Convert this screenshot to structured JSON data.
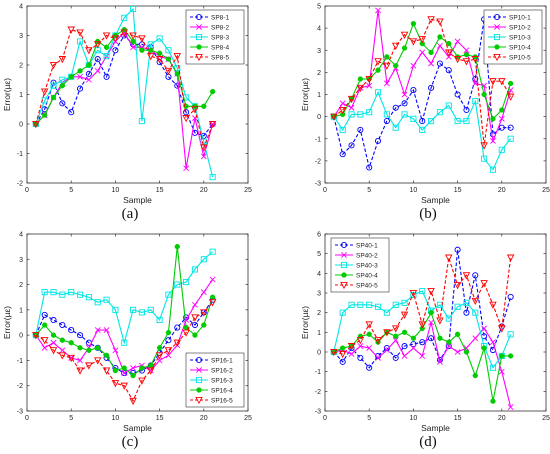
{
  "figure": {
    "panel_labels": [
      "(a)",
      "(b)",
      "(c)",
      "(d)"
    ]
  },
  "chart_data": [
    {
      "panel": "(a)",
      "type": "line",
      "xlabel": "Sample",
      "ylabel": "Error(µε)",
      "xlim": [
        0,
        25
      ],
      "ylim": [
        -2,
        4
      ],
      "xticks": [
        0,
        5,
        10,
        15,
        20,
        25
      ],
      "yticks": [
        -2,
        -1,
        0,
        1,
        2,
        3,
        4
      ],
      "legend_position": "top-right",
      "series": [
        {
          "name": "SP8-1",
          "color": "#0000ff",
          "marker": "o",
          "dash": "dash",
          "x": [
            1,
            2,
            3,
            4,
            5,
            6,
            7,
            8,
            9,
            10,
            11,
            12,
            13,
            14,
            15,
            16,
            17,
            18,
            19,
            20,
            21
          ],
          "y": [
            0,
            0.5,
            1.4,
            0.7,
            0.4,
            1.2,
            1.7,
            2.2,
            1.6,
            2.5,
            3.0,
            2.7,
            2.7,
            2.6,
            2.1,
            1.6,
            1.3,
            0.4,
            -0.3,
            -0.4,
            0
          ]
        },
        {
          "name": "SP8-2",
          "color": "#ff00ff",
          "marker": "x",
          "dash": "solid",
          "x": [
            1,
            2,
            3,
            4,
            5,
            6,
            7,
            8,
            9,
            10,
            11,
            12,
            13,
            14,
            15,
            16,
            17,
            18,
            19,
            20,
            21
          ],
          "y": [
            0,
            0.3,
            0.9,
            1.4,
            1.6,
            1.6,
            1.5,
            1.8,
            2.3,
            2.8,
            3.1,
            2.6,
            2.6,
            2.5,
            2.3,
            2.2,
            1.7,
            -1.5,
            0.2,
            -1.1,
            0
          ]
        },
        {
          "name": "SP8-3",
          "color": "#00e5e5",
          "marker": "s",
          "dash": "solid",
          "x": [
            1,
            2,
            3,
            4,
            5,
            6,
            7,
            8,
            9,
            10,
            11,
            12,
            13,
            14,
            15,
            16,
            17,
            18,
            19,
            20,
            21
          ],
          "y": [
            0,
            0.8,
            1.3,
            1.5,
            1.6,
            2.8,
            2.0,
            2.5,
            2.3,
            3.0,
            3.6,
            3.9,
            0.1,
            2.7,
            2.9,
            2.5,
            1.9,
            0.9,
            0.6,
            -0.6,
            -1.8
          ]
        },
        {
          "name": "SP8-4",
          "color": "#00cc00",
          "marker": "*",
          "dash": "solid",
          "x": [
            1,
            2,
            3,
            4,
            5,
            6,
            7,
            8,
            9,
            10,
            11,
            12,
            13,
            14,
            15,
            16,
            17,
            18,
            19,
            20,
            21
          ],
          "y": [
            0,
            0.3,
            0.9,
            1.3,
            1.6,
            1.8,
            2.0,
            2.8,
            2.6,
            3.0,
            3.2,
            2.8,
            2.5,
            2.5,
            2.4,
            2.2,
            1.7,
            0.6,
            0.6,
            0.6,
            1.1
          ]
        },
        {
          "name": "SP8-5",
          "color": "#ff0000",
          "marker": "v",
          "dash": "dash",
          "x": [
            1,
            2,
            3,
            4,
            5,
            6,
            7,
            8,
            9,
            10,
            11,
            12,
            13,
            14,
            15,
            16,
            17,
            18,
            19,
            20,
            21
          ],
          "y": [
            0,
            1.1,
            2.0,
            2.2,
            3.2,
            3.1,
            2.5,
            2.7,
            3.0,
            2.9,
            3.1,
            3.0,
            2.9,
            2.3,
            2.2,
            1.8,
            2.3,
            0.2,
            0.5,
            -0.8,
            0
          ]
        }
      ]
    },
    {
      "panel": "(b)",
      "type": "line",
      "xlabel": "Sample",
      "ylabel": "Error(µε)",
      "xlim": [
        0,
        25
      ],
      "ylim": [
        -3,
        5
      ],
      "xticks": [
        0,
        5,
        10,
        15,
        20,
        25
      ],
      "yticks": [
        -3,
        -2,
        -1,
        0,
        1,
        2,
        3,
        4,
        5
      ],
      "legend_position": "top-right",
      "series": [
        {
          "name": "SP10-1",
          "color": "#0000ff",
          "marker": "o",
          "dash": "dash",
          "x": [
            1,
            2,
            3,
            4,
            5,
            6,
            7,
            8,
            9,
            10,
            11,
            12,
            13,
            14,
            15,
            16,
            17,
            18,
            19,
            20,
            21
          ],
          "y": [
            0,
            -1.7,
            -1.3,
            -0.6,
            -2.3,
            -1.1,
            -0.2,
            0.4,
            0.6,
            1.2,
            -0.2,
            1.3,
            2.4,
            2.1,
            1.0,
            0.3,
            1.7,
            4.4,
            -0.8,
            -0.5,
            -0.5
          ]
        },
        {
          "name": "SP10-2",
          "color": "#ff00ff",
          "marker": "x",
          "dash": "solid",
          "x": [
            1,
            2,
            3,
            4,
            5,
            6,
            7,
            8,
            9,
            10,
            11,
            12,
            13,
            14,
            15,
            16,
            17,
            18,
            19,
            20,
            21
          ],
          "y": [
            0,
            0.6,
            0.4,
            1.3,
            1.4,
            4.8,
            1.5,
            2.2,
            1.0,
            2.3,
            2.9,
            2.4,
            3.2,
            2.7,
            3.4,
            3.0,
            1.5,
            1.4,
            -1.1,
            -0.1,
            1.2
          ]
        },
        {
          "name": "SP10-3",
          "color": "#00e5e5",
          "marker": "s",
          "dash": "solid",
          "x": [
            1,
            2,
            3,
            4,
            5,
            6,
            7,
            8,
            9,
            10,
            11,
            12,
            13,
            14,
            15,
            16,
            17,
            18,
            19,
            20,
            21
          ],
          "y": [
            0,
            -0.6,
            0.1,
            0.1,
            0.2,
            1.1,
            0.1,
            -0.5,
            0.1,
            -0.1,
            -0.6,
            -0.2,
            0.2,
            0.5,
            -0.2,
            -0.2,
            0.7,
            -1.9,
            -2.4,
            -1.5,
            -1.0
          ]
        },
        {
          "name": "SP10-4",
          "color": "#00cc00",
          "marker": "*",
          "dash": "solid",
          "x": [
            1,
            2,
            3,
            4,
            5,
            6,
            7,
            8,
            9,
            10,
            11,
            12,
            13,
            14,
            15,
            16,
            17,
            18,
            19,
            20,
            21
          ],
          "y": [
            0,
            0.1,
            0.8,
            1.7,
            1.7,
            2.1,
            2.7,
            2.3,
            3.1,
            4.2,
            3.3,
            2.9,
            3.6,
            3.3,
            2.7,
            2.8,
            2.7,
            1.0,
            -0.1,
            0.3,
            1.5
          ]
        },
        {
          "name": "SP10-5",
          "color": "#ff0000",
          "marker": "v",
          "dash": "dash",
          "x": [
            1,
            2,
            3,
            4,
            5,
            6,
            7,
            8,
            9,
            10,
            11,
            12,
            13,
            14,
            15,
            16,
            17,
            18,
            19,
            20,
            21
          ],
          "y": [
            0,
            0.3,
            0.8,
            1.3,
            1.7,
            2.5,
            2.3,
            3.2,
            3.7,
            3.4,
            3.5,
            4.4,
            4.3,
            2.9,
            2.6,
            2.5,
            2.6,
            -1.3,
            1.6,
            1.6,
            0.9
          ]
        }
      ]
    },
    {
      "panel": "(c)",
      "type": "line",
      "xlabel": "Sample",
      "ylabel": "Error(µε)",
      "xlim": [
        0,
        25
      ],
      "ylim": [
        -3,
        4
      ],
      "xticks": [
        0,
        5,
        10,
        15,
        20,
        25
      ],
      "yticks": [
        -3,
        -2,
        -1,
        0,
        1,
        2,
        3,
        4
      ],
      "legend_position": "bottom-right",
      "series": [
        {
          "name": "SP16-1",
          "color": "#0000ff",
          "marker": "o",
          "dash": "dash",
          "x": [
            1,
            2,
            3,
            4,
            5,
            6,
            7,
            8,
            9,
            10,
            11,
            12,
            13,
            14,
            15,
            16,
            17,
            18,
            19,
            20,
            21
          ],
          "y": [
            0,
            0.8,
            0.6,
            0.4,
            0.2,
            0.0,
            -0.3,
            -0.5,
            -0.9,
            -1.3,
            -1.5,
            -1.5,
            -1.4,
            -1.2,
            -0.7,
            -0.2,
            0.3,
            0.7,
            0.4,
            0.9,
            1.4
          ]
        },
        {
          "name": "SP16-2",
          "color": "#ff00ff",
          "marker": "x",
          "dash": "solid",
          "x": [
            1,
            2,
            3,
            4,
            5,
            6,
            7,
            8,
            9,
            10,
            11,
            12,
            13,
            14,
            15,
            16,
            17,
            18,
            19,
            20,
            21
          ],
          "y": [
            0,
            -0.5,
            -0.3,
            -0.6,
            -0.9,
            -1.0,
            -0.5,
            0.2,
            0.2,
            -0.6,
            -1.5,
            -1.3,
            -1.2,
            -1.4,
            -1.0,
            -0.8,
            -0.4,
            0.6,
            1.2,
            1.7,
            2.2
          ]
        },
        {
          "name": "SP16-3",
          "color": "#00e5e5",
          "marker": "s",
          "dash": "solid",
          "x": [
            1,
            2,
            3,
            4,
            5,
            6,
            7,
            8,
            9,
            10,
            11,
            12,
            13,
            14,
            15,
            16,
            17,
            18,
            19,
            20,
            21
          ],
          "y": [
            0,
            1.7,
            1.7,
            1.6,
            1.7,
            1.6,
            1.5,
            1.3,
            1.4,
            1.0,
            -0.3,
            1.0,
            0.9,
            1.0,
            0.6,
            1.6,
            2.0,
            2.1,
            2.6,
            3.0,
            3.3
          ]
        },
        {
          "name": "SP16-4",
          "color": "#00cc00",
          "marker": "*",
          "dash": "solid",
          "x": [
            1,
            2,
            3,
            4,
            5,
            6,
            7,
            8,
            9,
            10,
            11,
            12,
            13,
            14,
            15,
            16,
            17,
            18,
            19,
            20,
            21
          ],
          "y": [
            0,
            0.4,
            0.0,
            -0.2,
            -0.3,
            -0.5,
            -0.6,
            -0.5,
            -0.8,
            -1.4,
            -1.3,
            -1.6,
            -1.3,
            -1.2,
            -0.5,
            0.1,
            3.5,
            0.3,
            0.0,
            0.4,
            1.5
          ]
        },
        {
          "name": "SP16-5",
          "color": "#ff0000",
          "marker": "v",
          "dash": "dash",
          "x": [
            1,
            2,
            3,
            4,
            5,
            6,
            7,
            8,
            9,
            10,
            11,
            12,
            13,
            14,
            15,
            16,
            17,
            18,
            19,
            20,
            21
          ],
          "y": [
            0,
            -0.2,
            -0.6,
            -0.8,
            -0.9,
            -1.4,
            -1.2,
            -1.0,
            -1.4,
            -1.9,
            -2.0,
            -2.6,
            -1.8,
            -1.4,
            -0.8,
            -0.6,
            -0.3,
            0.1,
            0.7,
            0.9,
            1.3
          ]
        }
      ]
    },
    {
      "panel": "(d)",
      "type": "line",
      "xlabel": "Sample",
      "ylabel": "Error(µε)",
      "xlim": [
        0,
        25
      ],
      "ylim": [
        -3,
        6
      ],
      "xticks": [
        0,
        5,
        10,
        15,
        20,
        25
      ],
      "yticks": [
        -3,
        -2,
        -1,
        0,
        1,
        2,
        3,
        4,
        5,
        6
      ],
      "legend_position": "top-left",
      "series": [
        {
          "name": "SP40-1",
          "color": "#0000ff",
          "marker": "o",
          "dash": "dash",
          "x": [
            1,
            2,
            3,
            4,
            5,
            6,
            7,
            8,
            9,
            10,
            11,
            12,
            13,
            14,
            15,
            16,
            17,
            18,
            19,
            20,
            21
          ],
          "y": [
            0,
            -0.5,
            0.2,
            -0.3,
            -0.8,
            -0.2,
            0.2,
            -0.3,
            0.3,
            0.4,
            0.5,
            0.7,
            -0.4,
            0.3,
            5.2,
            2.0,
            3.9,
            0.8,
            0.1,
            1.3,
            2.8
          ]
        },
        {
          "name": "SP40-2",
          "color": "#ff00ff",
          "marker": "x",
          "dash": "solid",
          "x": [
            1,
            2,
            3,
            4,
            5,
            6,
            7,
            8,
            9,
            10,
            11,
            12,
            13,
            14,
            15,
            16,
            17,
            18,
            19,
            20,
            21
          ],
          "y": [
            0,
            0.1,
            -0.1,
            0.3,
            0.2,
            -0.3,
            0.1,
            0.6,
            -0.2,
            0.2,
            -0.2,
            1.5,
            -0.5,
            0.3,
            0.0,
            0.2,
            0.7,
            1.2,
            0.5,
            -1.0,
            -2.8
          ]
        },
        {
          "name": "SP40-3",
          "color": "#00e5e5",
          "marker": "s",
          "dash": "solid",
          "x": [
            1,
            2,
            3,
            4,
            5,
            6,
            7,
            8,
            9,
            10,
            11,
            12,
            13,
            14,
            15,
            16,
            17,
            18,
            19,
            20,
            21
          ],
          "y": [
            0,
            2.0,
            2.4,
            2.4,
            2.4,
            2.3,
            2.0,
            2.4,
            2.5,
            2.9,
            3.1,
            2.1,
            2.4,
            1.7,
            2.3,
            2.5,
            2.0,
            0.3,
            -0.8,
            -0.2,
            0.9
          ]
        },
        {
          "name": "SP40-4",
          "color": "#00cc00",
          "marker": "*",
          "dash": "solid",
          "x": [
            1,
            2,
            3,
            4,
            5,
            6,
            7,
            8,
            9,
            10,
            11,
            12,
            13,
            14,
            15,
            16,
            17,
            18,
            19,
            20,
            21
          ],
          "y": [
            0,
            0.2,
            0.3,
            0.8,
            0.9,
            0.5,
            1.0,
            0.8,
            1.0,
            0.7,
            1.2,
            2.0,
            0.7,
            0.5,
            0.9,
            0.0,
            -1.2,
            0.2,
            -2.5,
            -0.2,
            -0.2
          ]
        },
        {
          "name": "SP40-5",
          "color": "#ff0000",
          "marker": "v",
          "dash": "dash",
          "x": [
            1,
            2,
            3,
            4,
            5,
            6,
            7,
            8,
            9,
            10,
            11,
            12,
            13,
            14,
            15,
            16,
            17,
            18,
            19,
            20,
            21
          ],
          "y": [
            0,
            -0.1,
            0.3,
            0.6,
            1.4,
            0.6,
            1.0,
            1.2,
            1.9,
            3.0,
            1.4,
            3.1,
            1.6,
            4.8,
            3.4,
            3.9,
            2.6,
            3.5,
            2.4,
            1.2,
            4.8
          ]
        }
      ]
    }
  ]
}
